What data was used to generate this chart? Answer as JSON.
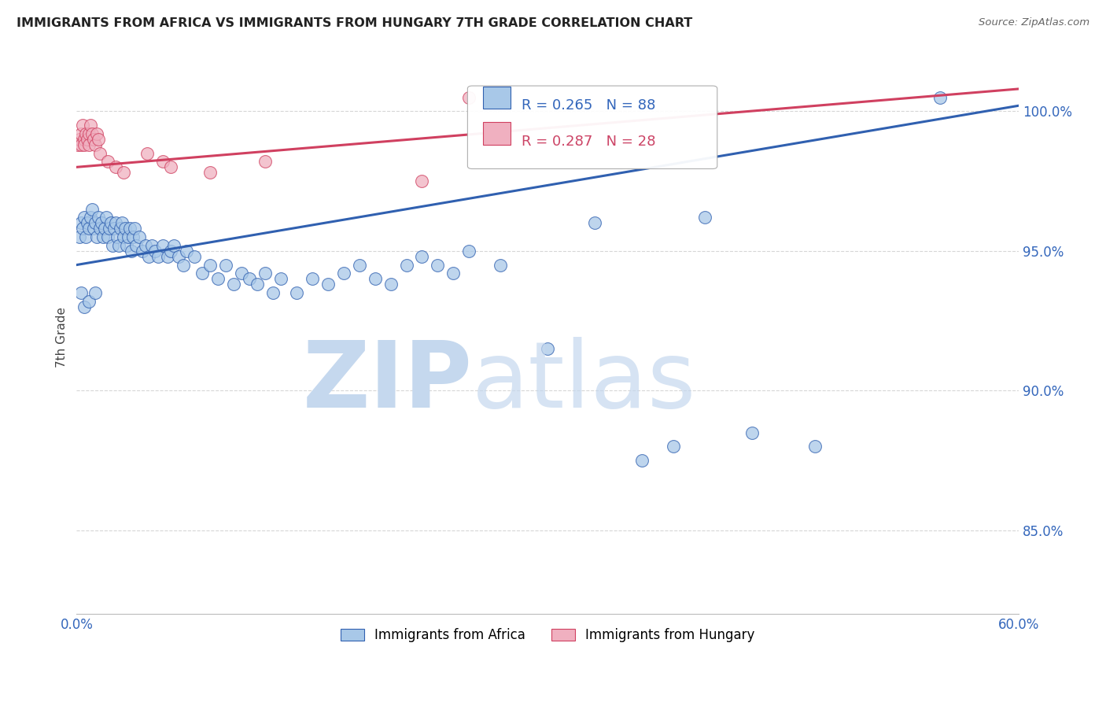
{
  "title": "IMMIGRANTS FROM AFRICA VS IMMIGRANTS FROM HUNGARY 7TH GRADE CORRELATION CHART",
  "source": "Source: ZipAtlas.com",
  "ylabel": "7th Grade",
  "legend_label_blue": "Immigrants from Africa",
  "legend_label_pink": "Immigrants from Hungary",
  "R_blue": 0.265,
  "N_blue": 88,
  "R_pink": 0.287,
  "N_pink": 28,
  "xlim": [
    0.0,
    60.0
  ],
  "ylim": [
    82.0,
    101.8
  ],
  "x_ticks": [
    0.0,
    10.0,
    20.0,
    30.0,
    40.0,
    50.0,
    60.0
  ],
  "y_ticks": [
    85.0,
    90.0,
    95.0,
    100.0
  ],
  "y_tick_labels": [
    "85.0%",
    "90.0%",
    "95.0%",
    "100.0%"
  ],
  "x_tick_labels": [
    "0.0%",
    "",
    "",
    "",
    "",
    "",
    "60.0%"
  ],
  "blue_color": "#a8c8e8",
  "pink_color": "#f0b0c0",
  "blue_line_color": "#3060b0",
  "pink_line_color": "#d04060",
  "blue_x": [
    0.2,
    0.3,
    0.4,
    0.5,
    0.6,
    0.7,
    0.8,
    0.9,
    1.0,
    1.1,
    1.2,
    1.3,
    1.4,
    1.5,
    1.6,
    1.7,
    1.8,
    1.9,
    2.0,
    2.1,
    2.2,
    2.3,
    2.4,
    2.5,
    2.6,
    2.7,
    2.8,
    2.9,
    3.0,
    3.1,
    3.2,
    3.3,
    3.4,
    3.5,
    3.6,
    3.7,
    3.8,
    4.0,
    4.2,
    4.4,
    4.6,
    4.8,
    5.0,
    5.2,
    5.5,
    5.8,
    6.0,
    6.2,
    6.5,
    6.8,
    7.0,
    7.5,
    8.0,
    8.5,
    9.0,
    9.5,
    10.0,
    10.5,
    11.0,
    11.5,
    12.0,
    12.5,
    13.0,
    14.0,
    15.0,
    16.0,
    17.0,
    18.0,
    19.0,
    20.0,
    21.0,
    22.0,
    23.0,
    24.0,
    25.0,
    27.0,
    30.0,
    33.0,
    36.0,
    38.0,
    40.0,
    43.0,
    47.0,
    55.0,
    0.3,
    0.5,
    0.8,
    1.2
  ],
  "blue_y": [
    95.5,
    96.0,
    95.8,
    96.2,
    95.5,
    96.0,
    95.8,
    96.2,
    96.5,
    95.8,
    96.0,
    95.5,
    96.2,
    95.8,
    96.0,
    95.5,
    95.8,
    96.2,
    95.5,
    95.8,
    96.0,
    95.2,
    95.8,
    96.0,
    95.5,
    95.2,
    95.8,
    96.0,
    95.5,
    95.8,
    95.2,
    95.5,
    95.8,
    95.0,
    95.5,
    95.8,
    95.2,
    95.5,
    95.0,
    95.2,
    94.8,
    95.2,
    95.0,
    94.8,
    95.2,
    94.8,
    95.0,
    95.2,
    94.8,
    94.5,
    95.0,
    94.8,
    94.2,
    94.5,
    94.0,
    94.5,
    93.8,
    94.2,
    94.0,
    93.8,
    94.2,
    93.5,
    94.0,
    93.5,
    94.0,
    93.8,
    94.2,
    94.5,
    94.0,
    93.8,
    94.5,
    94.8,
    94.5,
    94.2,
    95.0,
    94.5,
    91.5,
    96.0,
    87.5,
    88.0,
    96.2,
    88.5,
    88.0,
    100.5,
    93.5,
    93.0,
    93.2,
    93.5
  ],
  "pink_x": [
    0.1,
    0.2,
    0.3,
    0.3,
    0.4,
    0.5,
    0.5,
    0.6,
    0.7,
    0.8,
    0.8,
    0.9,
    1.0,
    1.1,
    1.2,
    1.3,
    1.4,
    1.5,
    2.0,
    2.5,
    3.0,
    4.5,
    5.5,
    6.0,
    8.5,
    12.0,
    22.0,
    25.0
  ],
  "pink_y": [
    98.8,
    99.0,
    99.2,
    98.8,
    99.5,
    99.0,
    98.8,
    99.2,
    99.0,
    99.2,
    98.8,
    99.5,
    99.2,
    99.0,
    98.8,
    99.2,
    99.0,
    98.5,
    98.2,
    98.0,
    97.8,
    98.5,
    98.2,
    98.0,
    97.8,
    98.2,
    97.5,
    100.5
  ],
  "blue_trendline": [
    94.5,
    100.2
  ],
  "pink_trendline": [
    98.0,
    100.8
  ]
}
